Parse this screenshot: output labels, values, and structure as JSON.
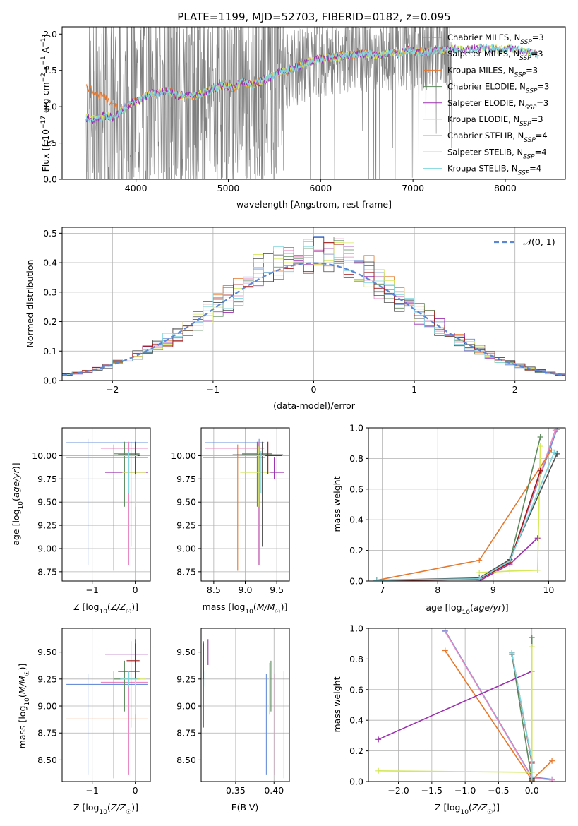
{
  "colors": {
    "Chabrier MILES": "#6a8fd8",
    "Salpeter MILES": "#e78ac3",
    "Kroupa MILES": "#e6772b",
    "Chabrier ELODIE": "#5d8a5d",
    "Salpeter ELODIE": "#9b30ae",
    "Kroupa ELODIE": "#d4e85a",
    "Chabrier STELIB": "#505050",
    "Salpeter STELIB": "#a01818",
    "Kroupa STELIB": "#7fd6de",
    "data": "#808080",
    "normal": "#5b86d6"
  },
  "chart_data": [
    {
      "id": "spectrum",
      "type": "line",
      "title": "PLATE=1199, MJD=52703, FIBERID=0182, z=0.095",
      "xlabel": "wavelength [Angstrom, rest frame]",
      "ylabel": "Flux [f_λ 10^-17 erg cm^-2 s^-1 A^-1]",
      "xlim": [
        3200,
        8650
      ],
      "ylim": [
        0,
        2.1
      ],
      "xticks": [
        4000,
        5000,
        6000,
        7000,
        8000
      ],
      "yticks": [
        0.0,
        0.5,
        1.0,
        1.5,
        2.0
      ],
      "legend_position": "right",
      "legend": [
        "Chabrier MILES, N_SSP=3",
        "Salpeter MILES, N_SSP=3",
        "Kroupa MILES, N_SSP=3",
        "Chabrier ELODIE, N_SSP=3",
        "Salpeter ELODIE, N_SSP=3",
        "Kroupa ELODIE, N_SSP=3",
        "Chabrier STELIB, N_SSP=4",
        "Salpeter STELIB, N_SSP=4",
        "Kroupa STELIB, N_SSP=4"
      ],
      "model_continuum": {
        "x": [
          3450,
          3550,
          3650,
          3750,
          3850,
          3950,
          4050,
          4150,
          4250,
          4350,
          4450,
          4550,
          4650,
          4750,
          4850,
          4950,
          5050,
          5150,
          5250,
          5350,
          5450,
          5550,
          5650,
          5750,
          5850,
          5950,
          6050,
          6150,
          6250,
          6350,
          6450,
          6550,
          6650,
          6750,
          6850,
          6950,
          7050,
          7150,
          7250,
          7350,
          7450,
          7550,
          7650,
          7750,
          7850,
          7950,
          8050,
          8150,
          8250,
          8350
        ],
        "y": [
          0.85,
          0.82,
          0.88,
          0.85,
          0.95,
          1.05,
          1.1,
          1.18,
          1.2,
          1.22,
          1.15,
          1.15,
          1.15,
          1.2,
          1.25,
          1.3,
          1.25,
          1.35,
          1.3,
          1.35,
          1.4,
          1.47,
          1.5,
          1.55,
          1.6,
          1.65,
          1.67,
          1.68,
          1.7,
          1.72,
          1.73,
          1.72,
          1.7,
          1.75,
          1.73,
          1.78,
          1.75,
          1.76,
          1.78,
          1.77,
          1.8,
          1.78,
          1.8,
          1.82,
          1.8,
          1.78,
          1.8,
          1.78,
          1.75,
          1.72
        ]
      }
    },
    {
      "id": "residuals",
      "type": "line",
      "xlabel": "(data-model)/error",
      "ylabel": "Normed distribution",
      "xlim": [
        -2.5,
        2.5
      ],
      "ylim": [
        0,
        0.52
      ],
      "xticks": [
        -2,
        -1,
        0,
        1,
        2
      ],
      "yticks": [
        0.0,
        0.1,
        0.2,
        0.3,
        0.4,
        0.5
      ],
      "legend": [
        "𝒩(0, 1)"
      ],
      "legend_position": "top-right",
      "grid": true
    },
    {
      "id": "age_vs_Z",
      "type": "scatter",
      "xlabel": "Z [log10(Z/Z☉)]",
      "ylabel": "age  [log10(age/yr)]",
      "xlim": [
        -1.7,
        0.35
      ],
      "ylim": [
        8.65,
        10.3
      ],
      "xticks": [
        -1,
        0
      ],
      "yticks": [
        8.75,
        9.0,
        9.25,
        9.5,
        9.75,
        10.0
      ],
      "grid": true
    },
    {
      "id": "age_vs_mass",
      "type": "scatter",
      "xlabel": "mass [log10(M/M☉)]",
      "xlim": [
        8.3,
        9.7
      ],
      "ylim": [
        8.65,
        10.3
      ],
      "xticks": [
        8.5,
        9.0,
        9.5
      ],
      "yticks": [
        8.75,
        9.0,
        9.25,
        9.5,
        9.75,
        10.0
      ],
      "grid": true
    },
    {
      "id": "weight_vs_age",
      "type": "line",
      "xlabel": "age  [log10(age/yr)]",
      "ylabel": "mass weight",
      "xlim": [
        6.75,
        10.3
      ],
      "ylim": [
        0,
        1.0
      ],
      "xticks": [
        7,
        8,
        9,
        10
      ],
      "yticks": [
        0.0,
        0.2,
        0.4,
        0.6,
        0.8,
        1.0
      ],
      "grid": true,
      "series": [
        {
          "key": "Chabrier MILES",
          "x": [
            6.9,
            8.75,
            9.3,
            10.15
          ],
          "y": [
            0.005,
            0.01,
            0.13,
            0.99
          ]
        },
        {
          "key": "Salpeter MILES",
          "x": [
            6.9,
            8.75,
            9.3,
            10.12
          ],
          "y": [
            0.005,
            0.01,
            0.12,
            0.985
          ]
        },
        {
          "key": "Kroupa MILES",
          "x": [
            6.9,
            8.75,
            10.05
          ],
          "y": [
            0.005,
            0.135,
            0.855
          ]
        },
        {
          "key": "Chabrier ELODIE",
          "x": [
            6.9,
            8.75,
            9.3,
            9.85
          ],
          "y": [
            0.005,
            0.01,
            0.13,
            0.94
          ]
        },
        {
          "key": "Salpeter ELODIE",
          "x": [
            8.75,
            9.3,
            9.8
          ],
          "y": [
            0.0,
            0.11,
            0.28
          ]
        },
        {
          "key": "Kroupa ELODIE",
          "x": [
            8.75,
            9.3,
            9.8,
            9.85
          ],
          "y": [
            0.055,
            0.065,
            0.07,
            0.88
          ]
        },
        {
          "key": "Chabrier STELIB",
          "x": [
            6.9,
            8.75,
            9.3,
            10.15
          ],
          "y": [
            0.005,
            0.02,
            0.14,
            0.83
          ]
        },
        {
          "key": "Salpeter STELIB",
          "x": [
            6.9,
            8.75,
            9.3,
            9.85
          ],
          "y": [
            0.005,
            0.01,
            0.12,
            0.72
          ]
        },
        {
          "key": "Kroupa STELIB",
          "x": [
            6.9,
            8.75,
            9.3,
            10.1
          ],
          "y": [
            0.005,
            0.015,
            0.13,
            0.84
          ]
        }
      ]
    },
    {
      "id": "mass_vs_Z",
      "type": "scatter",
      "xlabel": "Z [log10(Z/Z☉)]",
      "ylabel": "mass [log10(M/M☉)]",
      "xlim": [
        -1.7,
        0.35
      ],
      "ylim": [
        8.3,
        9.72
      ],
      "xticks": [
        -1,
        0
      ],
      "yticks": [
        8.5,
        8.75,
        9.0,
        9.25,
        9.5
      ],
      "grid": true
    },
    {
      "id": "mass_vs_EBV",
      "type": "scatter",
      "xlabel": "E(B-V)",
      "xlim": [
        0.305,
        0.42
      ],
      "ylim": [
        8.3,
        9.72
      ],
      "xticks": [
        0.35,
        0.4
      ],
      "yticks": [
        8.5,
        8.75,
        9.0,
        9.25,
        9.5
      ],
      "grid": true
    },
    {
      "id": "weight_vs_Z",
      "type": "line",
      "xlabel": "Z [log10(Z/Z☉)]",
      "ylabel": "mass weight",
      "xlim": [
        -2.45,
        0.5
      ],
      "ylim": [
        0,
        1.0
      ],
      "xticks": [
        -2.0,
        -1.5,
        -1.0,
        -0.5,
        0.0
      ],
      "yticks": [
        0.0,
        0.2,
        0.4,
        0.6,
        0.8,
        1.0
      ],
      "grid": true,
      "series": [
        {
          "key": "Chabrier MILES",
          "x": [
            -1.3,
            0.0,
            0.3
          ],
          "y": [
            0.985,
            0.03,
            0.015
          ]
        },
        {
          "key": "Salpeter MILES",
          "x": [
            -1.3,
            0.0,
            0.3
          ],
          "y": [
            0.98,
            0.025,
            0.01
          ]
        },
        {
          "key": "Kroupa MILES",
          "x": [
            -1.3,
            0.0,
            0.3
          ],
          "y": [
            0.855,
            0.01,
            0.135
          ]
        },
        {
          "key": "Chabrier ELODIE",
          "x": [
            -0.3,
            0.0,
            0.0
          ],
          "y": [
            0.83,
            0.005,
            0.94
          ]
        },
        {
          "key": "Salpeter ELODIE",
          "x": [
            -2.3,
            0.0
          ],
          "y": [
            0.275,
            0.72
          ]
        },
        {
          "key": "Kroupa ELODIE",
          "x": [
            -2.3,
            0.0,
            0.0
          ],
          "y": [
            0.07,
            0.06,
            0.88
          ]
        },
        {
          "key": "Chabrier STELIB",
          "x": [
            -0.3,
            0.0,
            0.0
          ],
          "y": [
            0.83,
            0.13,
            0.02
          ]
        },
        {
          "key": "Salpeter STELIB",
          "x": [
            -0.3,
            0.0,
            0.0
          ],
          "y": [
            0.84,
            0.12,
            0.01
          ]
        },
        {
          "key": "Kroupa STELIB",
          "x": [
            -0.3,
            0.0,
            0.0
          ],
          "y": [
            0.84,
            0.13,
            0.015
          ]
        }
      ]
    }
  ]
}
